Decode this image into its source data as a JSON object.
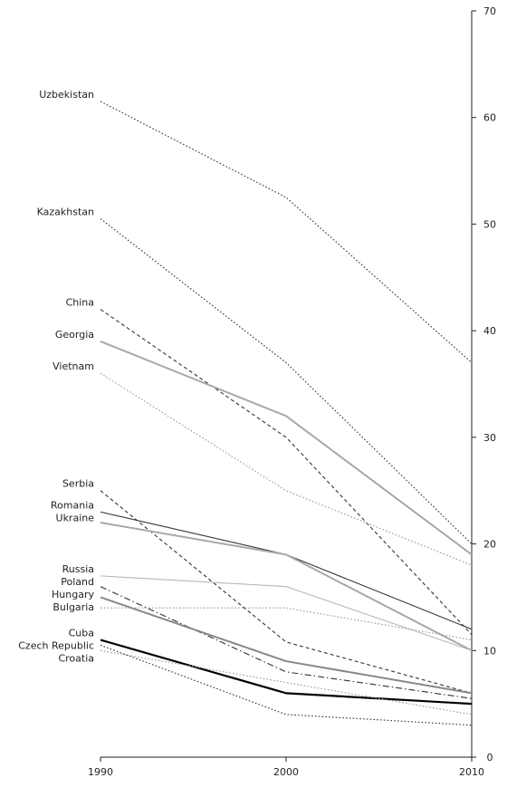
{
  "chart_data": {
    "type": "line",
    "title": "",
    "xlabel": "",
    "ylabel": "",
    "x": [
      1990,
      2000,
      2010
    ],
    "xlim": [
      1990,
      2010
    ],
    "ylim": [
      0,
      70
    ],
    "y_ticks": [
      0,
      10,
      20,
      30,
      40,
      50,
      60,
      70
    ],
    "y_axis_position": "right",
    "grid": false,
    "legend": "none",
    "series": [
      {
        "name": "Uzbekistan",
        "values": [
          61.5,
          52.5,
          37
        ],
        "style": "dotted",
        "color": "#333333"
      },
      {
        "name": "Kazakhstan",
        "values": [
          50.5,
          37,
          20
        ],
        "style": "dotted",
        "color": "#333333"
      },
      {
        "name": "China",
        "values": [
          42,
          30,
          11.5
        ],
        "style": "dashed",
        "color": "#333333"
      },
      {
        "name": "Georgia",
        "values": [
          39,
          32,
          19
        ],
        "style": "solid",
        "color": "#a8a8a8"
      },
      {
        "name": "Vietnam",
        "values": [
          36,
          25,
          18
        ],
        "style": "dotted",
        "color": "#999999"
      },
      {
        "name": "Serbia",
        "values": [
          25,
          10.8,
          6
        ],
        "style": "dashed",
        "color": "#333333"
      },
      {
        "name": "Romania",
        "values": [
          23,
          19,
          12
        ],
        "style": "solid",
        "color": "#333333"
      },
      {
        "name": "Ukraine",
        "values": [
          22,
          19,
          10
        ],
        "style": "solid",
        "color": "#a8a8a8"
      },
      {
        "name": "Russia",
        "values": [
          17,
          16,
          10
        ],
        "style": "solid",
        "color": "#b8b8b8"
      },
      {
        "name": "Poland",
        "values": [
          16,
          8,
          5.5
        ],
        "style": "dashdot",
        "color": "#333333"
      },
      {
        "name": "Hungary",
        "values": [
          15,
          9,
          6
        ],
        "style": "solid",
        "color": "#888888"
      },
      {
        "name": "Bulgaria",
        "values": [
          14,
          14,
          11
        ],
        "style": "dotted",
        "color": "#999999"
      },
      {
        "name": "Cuba",
        "values": [
          11,
          6,
          5
        ],
        "style": "solid",
        "color": "#000000"
      },
      {
        "name": "Czech Republic",
        "values": [
          10.5,
          4,
          3
        ],
        "style": "dotted",
        "color": "#333333"
      },
      {
        "name": "Croatia",
        "values": [
          10,
          7,
          4
        ],
        "style": "dotted",
        "color": "#999999"
      }
    ]
  }
}
